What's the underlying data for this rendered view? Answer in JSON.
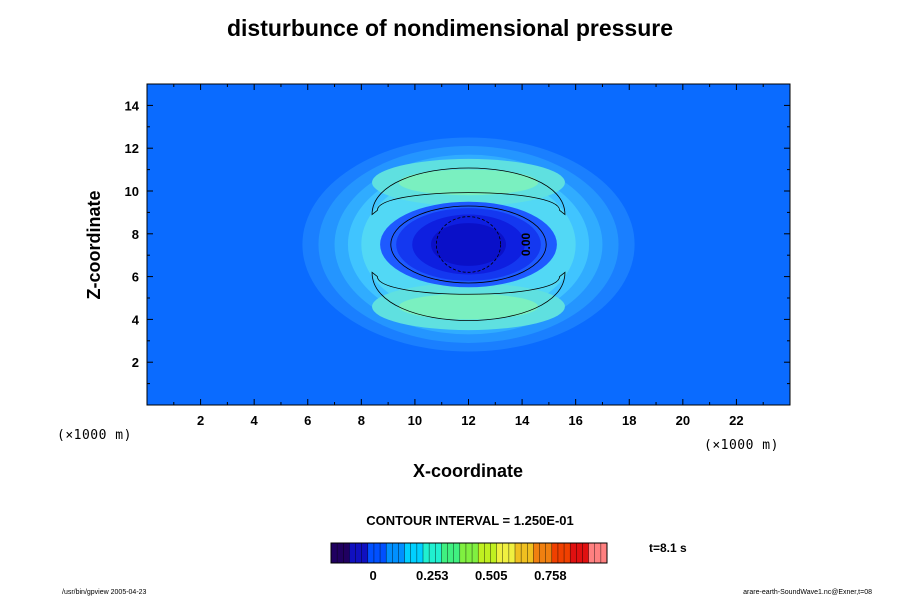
{
  "chart_data": {
    "type": "heatmap",
    "title": "disturbunce of nondimensional pressure",
    "xlabel": "X-coordinate",
    "ylabel": "Z-coordinate",
    "x_units": "(×1000 m)",
    "y_units": "(×1000 m)",
    "xlim": [
      0,
      24
    ],
    "ylim": [
      0,
      15
    ],
    "x_ticks": [
      2,
      4,
      6,
      8,
      10,
      12,
      14,
      16,
      18,
      20,
      22
    ],
    "y_ticks": [
      2,
      4,
      6,
      8,
      10,
      12,
      14
    ],
    "contour_interval_label": "CONTOUR INTERVAL = 1.250E-01",
    "contour_labels": [
      "0.00"
    ],
    "colorbar": {
      "tick_values": [
        0,
        0.253,
        0.505,
        0.758
      ],
      "tick_labels": [
        "0",
        "0.253",
        "0.505",
        "0.758"
      ],
      "range": [
        -0.18,
        1.0
      ]
    },
    "field_features": {
      "background_value": 0.12,
      "center_minimum": {
        "x": 12,
        "z": 7.5,
        "value": -0.15
      },
      "upper_lobe_max": {
        "x": 12,
        "z": 10.5,
        "value": 0.47
      },
      "lower_lobe_max": {
        "x": 12,
        "z": 4.5,
        "value": 0.47
      },
      "disturbance_extent_x": [
        6,
        18
      ],
      "disturbance_extent_z": [
        2,
        13
      ]
    },
    "time_label": "t=8.1 s"
  },
  "footer": {
    "left": "/usr/bin/gpview 2005-04-23",
    "right": "arare-earth-SoundWave1.nc@Exner,t=08"
  },
  "colors": {
    "background_field": "#0a6bff",
    "contour_line": "#000000"
  }
}
